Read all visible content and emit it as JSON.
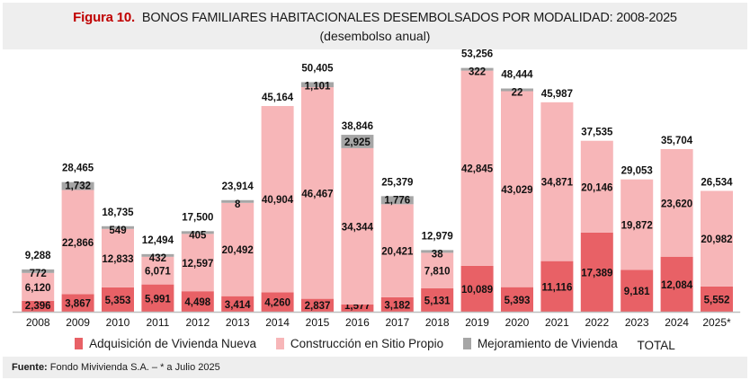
{
  "header": {
    "figure_label": "Figura 10.",
    "title": "BONOS FAMILIARES HABITACIONALES DESEMBOLSADOS POR MODALIDAD: 2008-2025",
    "subtitle": "(desembolso anual)"
  },
  "footer": {
    "source_label": "Fuente:",
    "source_text": "Fondo Mivivienda S.A. – * a Julio 2025"
  },
  "colors": {
    "adquisicion": "#e86166",
    "construccion": "#f7b6b8",
    "mejoramiento": "#a6a6a6",
    "title_accent": "#c00000"
  },
  "chart_data": {
    "type": "bar",
    "stacked": true,
    "title": "BONOS FAMILIARES HABITACIONALES DESEMBOLSADOS POR MODALIDAD: 2008-2025",
    "subtitle": "(desembolso anual)",
    "xlabel": "",
    "ylabel": "",
    "ylim": [
      0,
      55000
    ],
    "grid": false,
    "legend_position": "bottom",
    "categories": [
      "2008",
      "2009",
      "2010",
      "2011",
      "2012",
      "2013",
      "2014",
      "2015",
      "2016",
      "2017",
      "2018",
      "2019",
      "2020",
      "2021",
      "2022",
      "2023",
      "2024",
      "2025*"
    ],
    "series": [
      {
        "name": "Adquisición de Vivienda Nueva",
        "values": [
          2396,
          3867,
          5353,
          5991,
          4498,
          3414,
          4260,
          2837,
          1577,
          3182,
          5131,
          10089,
          5393,
          11116,
          17389,
          9181,
          12084,
          5552
        ]
      },
      {
        "name": "Construcción en Sitio Propio",
        "values": [
          6120,
          22866,
          12833,
          6071,
          12597,
          20492,
          40904,
          46467,
          34344,
          20421,
          7810,
          42845,
          43029,
          34871,
          20146,
          19872,
          23620,
          20982
        ]
      },
      {
        "name": "Mejoramiento de Vivienda",
        "values": [
          772,
          1732,
          549,
          432,
          405,
          8,
          null,
          1101,
          2925,
          1776,
          38,
          322,
          22,
          null,
          null,
          null,
          null,
          null
        ]
      }
    ],
    "totals_series_name": "TOTAL",
    "totals": [
      9288,
      28465,
      18735,
      12494,
      17500,
      23914,
      45164,
      50405,
      38846,
      25379,
      12979,
      53256,
      48444,
      45987,
      37535,
      29053,
      35704,
      26534
    ]
  }
}
